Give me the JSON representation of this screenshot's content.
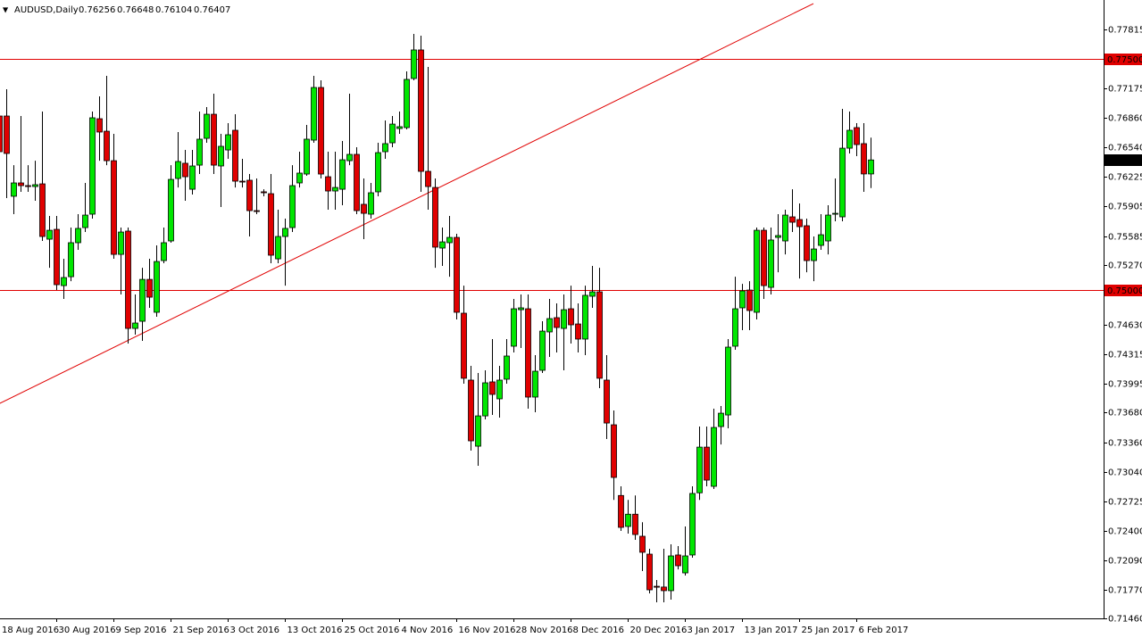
{
  "chart_data": {
    "type": "candlestick",
    "title": "AUDUSD,Daily",
    "categories": [
      "18 Aug 2016",
      null,
      null,
      null,
      null,
      null,
      null,
      null,
      "30 Aug 2016",
      null,
      null,
      null,
      null,
      null,
      null,
      null,
      "9 Sep 2016",
      null,
      null,
      null,
      null,
      null,
      null,
      null,
      "21 Sep 2016",
      null,
      null,
      null,
      null,
      null,
      null,
      null,
      "3 Oct 2016",
      null,
      null,
      null,
      null,
      null,
      null,
      null,
      "13 Oct 2016",
      null,
      null,
      null,
      null,
      null,
      null,
      null,
      "25 Oct 2016",
      null,
      null,
      null,
      null,
      null,
      null,
      null,
      "4 Nov 2016",
      null,
      null,
      null,
      null,
      null,
      null,
      null,
      "16 Nov 2016",
      null,
      null,
      null,
      null,
      null,
      null,
      null,
      "28 Nov 2016",
      null,
      null,
      null,
      null,
      null,
      null,
      null,
      "8 Dec 2016",
      null,
      null,
      null,
      null,
      null,
      null,
      null,
      "20 Dec 2016",
      null,
      null,
      null,
      null,
      null,
      null,
      null,
      "3 Jan 2017",
      null,
      null,
      null,
      null,
      null,
      null,
      null,
      "13 Jan 2017",
      null,
      null,
      null,
      null,
      null,
      null,
      null,
      "25 Jan 2017",
      null,
      null,
      null,
      null,
      null,
      null,
      null,
      "6 Feb 2017",
      null,
      null
    ],
    "open": [
      0.76881,
      0.76881,
      0.76015,
      0.76159,
      0.7613,
      0.7612,
      0.76149,
      0.75552,
      0.75658,
      0.75051,
      0.75147,
      0.75514,
      0.75677,
      0.75822,
      0.76852,
      0.76717,
      0.76399,
      0.75388,
      0.75639,
      0.74589,
      0.74666,
      0.75118,
      0.74763,
      0.75321,
      0.75533,
      0.76207,
      0.76371,
      0.76091,
      0.76351,
      0.7664,
      0.769,
      0.76342,
      0.76515,
      0.76727,
      0.76178,
      0.76188,
      0.7586,
      0.76063,
      0.76043,
      0.7534,
      0.75581,
      0.75677,
      0.76159,
      0.76255,
      0.76621,
      0.77189,
      0.76226,
      0.76072,
      0.76091,
      0.76399,
      0.76467,
      0.75928,
      0.75822,
      0.76063,
      0.76496,
      0.76592,
      0.76746,
      0.76756,
      0.77286,
      0.77594,
      0.76284,
      0.7611,
      0.75456,
      0.75514,
      0.75571,
      0.74753,
      0.74031,
      0.73318,
      0.73645,
      0.74012,
      0.73829,
      0.74041,
      0.74397,
      0.74791,
      0.74801,
      0.73848,
      0.74137,
      0.74551,
      0.74705,
      0.74589,
      0.74801,
      0.74637,
      0.74474,
      0.74936,
      0.74984,
      0.74031,
      0.73549,
      0.72786,
      0.72452,
      0.72584,
      0.72346,
      0.72153,
      0.71806,
      0.71798,
      0.71759,
      0.72144,
      0.71951,
      0.72144,
      0.72815,
      0.73308,
      0.72885,
      0.7353,
      0.73655,
      0.74397,
      0.74811,
      0.75003,
      0.74763,
      0.75648,
      0.75032,
      0.75571,
      0.75533,
      0.75793,
      0.75764,
      0.75697,
      0.75321,
      0.75485,
      0.75533,
      0.75822,
      0.75793,
      0.76534,
      0.76756,
      0.76583,
      0.76256
    ],
    "high": [
      0.77218,
      0.7717,
      0.76351,
      0.76881,
      0.76351,
      0.76399,
      0.76929,
      0.75803,
      0.75803,
      0.7534,
      0.75677,
      0.75822,
      0.76159,
      0.76929,
      0.77093,
      0.77314,
      0.76689,
      0.75677,
      0.75677,
      0.74955,
      0.75243,
      0.7534,
      0.75485,
      0.75677,
      0.76351,
      0.76708,
      0.76515,
      0.76515,
      0.76929,
      0.76977,
      0.77122,
      0.76689,
      0.76804,
      0.769,
      0.76419,
      0.76255,
      0.76207,
      0.76091,
      0.76255,
      0.7587,
      0.75774,
      0.76351,
      0.76496,
      0.76785,
      0.77314,
      0.77266,
      0.76496,
      0.76496,
      0.76611,
      0.77122,
      0.76544,
      0.76207,
      0.76159,
      0.76592,
      0.76833,
      0.76881,
      0.76929,
      0.77363,
      0.77767,
      0.77748,
      0.77411,
      0.76207,
      0.75677,
      0.75803,
      0.7561,
      0.75051,
      0.74185,
      0.74108,
      0.74137,
      0.74474,
      0.74185,
      0.74474,
      0.74907,
      0.74955,
      0.74955,
      0.743,
      0.74666,
      0.74907,
      0.74859,
      0.74955,
      0.75051,
      0.74859,
      0.75051,
      0.75263,
      0.75243,
      0.743,
      0.73703,
      0.72885,
      0.72738,
      0.72786,
      0.72497,
      0.72211,
      0.71874,
      0.72211,
      0.72259,
      0.7224,
      0.72452,
      0.72885,
      0.7353,
      0.7353,
      0.73723,
      0.73752,
      0.74474,
      0.75147,
      0.7507,
      0.75099,
      0.75677,
      0.75677,
      0.75677,
      0.75822,
      0.7587,
      0.76091,
      0.75937,
      0.75774,
      0.75581,
      0.75822,
      0.75918,
      0.76207,
      0.76958,
      0.76929,
      0.76804,
      0.76804,
      0.76648
    ],
    "low": [
      0.76207,
      0.75995,
      0.75822,
      0.76063,
      0.76063,
      0.75966,
      0.75533,
      0.75243,
      0.75003,
      0.74907,
      0.75099,
      0.75437,
      0.75629,
      0.75774,
      0.76399,
      0.76351,
      0.7534,
      0.74955,
      0.74426,
      0.74522,
      0.74455,
      0.74811,
      0.74715,
      0.75292,
      0.75514,
      0.7611,
      0.75966,
      0.76034,
      0.76255,
      0.76592,
      0.76255,
      0.75899,
      0.76419,
      0.7611,
      0.7611,
      0.75581,
      0.75822,
      0.76015,
      0.75292,
      0.75292,
      0.75051,
      0.75629,
      0.7611,
      0.76236,
      0.76592,
      0.76207,
      0.7587,
      0.7587,
      0.75918,
      0.76351,
      0.75822,
      0.75552,
      0.75774,
      0.76015,
      0.76419,
      0.76544,
      0.76689,
      0.76737,
      0.77266,
      0.76063,
      0.7587,
      0.75243,
      0.75263,
      0.75147,
      0.74686,
      0.73993,
      0.7327,
      0.73106,
      0.73607,
      0.73655,
      0.73626,
      0.73993,
      0.74329,
      0.74378,
      0.73723,
      0.73684,
      0.74108,
      0.74281,
      0.74329,
      0.74137,
      0.74426,
      0.74329,
      0.743,
      0.74811,
      0.73944,
      0.73395,
      0.72738,
      0.72404,
      0.72375,
      0.72307,
      0.7197,
      0.7173,
      0.71633,
      0.71633,
      0.71662,
      0.71989,
      0.71922,
      0.72115,
      0.72738,
      0.72885,
      0.72856,
      0.73337,
      0.73511,
      0.74358,
      0.7457,
      0.7457,
      0.74686,
      0.74907,
      0.74955,
      0.75195,
      0.75388,
      0.75629,
      0.75128,
      0.75195,
      0.75099,
      0.75437,
      0.75388,
      0.75745,
      0.75745,
      0.76477,
      0.76448,
      0.76063,
      0.76104
    ],
    "close": [
      0.76496,
      0.76477,
      0.76159,
      0.7613,
      0.7612,
      0.7614,
      0.75581,
      0.75648,
      0.75061,
      0.75138,
      0.75514,
      0.75668,
      0.75812,
      0.76862,
      0.76708,
      0.76399,
      0.75388,
      0.75629,
      0.74589,
      0.74647,
      0.75118,
      0.74926,
      0.75311,
      0.75514,
      0.76197,
      0.7639,
      0.76226,
      0.76342,
      0.76631,
      0.769,
      0.76351,
      0.76554,
      0.76679,
      0.76178,
      0.76169,
      0.7586,
      0.75851,
      0.76053,
      0.75379,
      0.75581,
      0.75668,
      0.7613,
      0.76265,
      0.76631,
      0.77189,
      0.76255,
      0.76072,
      0.7611,
      0.76409,
      0.76467,
      0.7586,
      0.75831,
      0.76053,
      0.76486,
      0.76583,
      0.76794,
      0.76766,
      0.77276,
      0.77594,
      0.76284,
      0.7612,
      0.75466,
      0.75523,
      0.75571,
      0.74763,
      0.74051,
      0.73376,
      0.73645,
      0.74002,
      0.73877,
      0.74031,
      0.74291,
      0.74801,
      0.74811,
      0.73848,
      0.74127,
      0.7456,
      0.74695,
      0.74599,
      0.74791,
      0.74628,
      0.74474,
      0.74946,
      0.74984,
      0.74051,
      0.73568,
      0.72981,
      0.72442,
      0.72584,
      0.72365,
      0.72173,
      0.71768,
      0.71798,
      0.71759,
      0.72134,
      0.72028,
      0.72134,
      0.72808,
      0.73308,
      0.72952,
      0.7352,
      0.73674,
      0.74387,
      0.74801,
      0.74994,
      0.74782,
      0.75648,
      0.75051,
      0.75543,
      0.75591,
      0.75812,
      0.75735,
      0.75687,
      0.75321,
      0.75446,
      0.756,
      0.75812,
      0.75831,
      0.76534,
      0.76727,
      0.76573,
      0.76256,
      0.76407
    ],
    "up_color": "#00e600",
    "down_color": "#e00000",
    "wick_color": "#000000",
    "ylim": [
      0.7146,
      0.78133
    ],
    "yticks": [
      0.77815,
      0.77175,
      {
        "value": 0.7686,
        "label": "0.76860"
      },
      {
        "value": 0.7654,
        "label": "0.76540"
      },
      0.76225,
      0.75905,
      0.75585,
      {
        "value": 0.7527,
        "label": "0.75270"
      },
      {
        "value": 0.7463,
        "label": "0.74630"
      },
      0.74315,
      0.73995,
      {
        "value": 0.7368,
        "label": "0.73680"
      },
      {
        "value": 0.7336,
        "label": "0.73360"
      },
      {
        "value": 0.7304,
        "label": "0.73040"
      },
      0.72725,
      {
        "value": 0.724,
        "label": "0.72400"
      },
      {
        "value": 0.7209,
        "label": "0.72090"
      },
      {
        "value": 0.7177,
        "label": "0.71770"
      },
      {
        "value": 0.7146,
        "label": "0.71460"
      }
    ],
    "levels": [
      {
        "value": 0.775,
        "label": "0.77500"
      },
      {
        "value": 0.75,
        "label": "0.75000"
      }
    ],
    "level_color": "#e00000",
    "trendline": {
      "x": [
        0,
        114
      ],
      "y": [
        0.73776,
        0.78094
      ],
      "color": "#e00000"
    },
    "grid": false
  }
}
